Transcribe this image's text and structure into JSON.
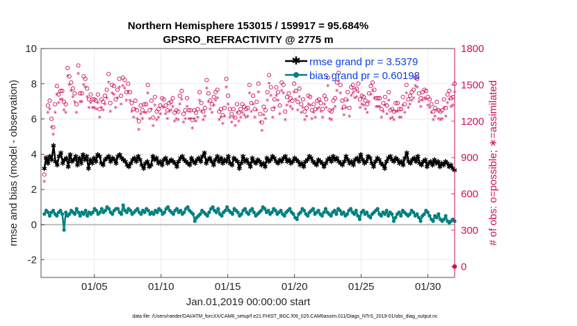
{
  "chart_data": {
    "type": "line",
    "title_line1": "Northern Hemisphere 153015 / 159917 = 95.684%",
    "title_line2": "GPSRO_REFRACTIVITY @ 2775 m",
    "xlabel": "Jan.01,2019 00:00:00 start",
    "ylabel": "rmse and bias (model - observation)",
    "ylabel_right": "# of obs: o=possible; ∗=assimilated",
    "footer": "data file: /Users/raeder/DAI/ATM_forcXX/CAM6_setup/f.e21.FHIST_BGC.f09_025.CAM6assim.011/Diags_NTrS_2019-01/obs_diag_output.nc",
    "xlim": [
      1,
      32
    ],
    "ylim": [
      -3,
      10
    ],
    "ylim_right": [
      -90,
      1800
    ],
    "x_tick_values": [
      5,
      10,
      15,
      20,
      25,
      30
    ],
    "x_tick_labels": [
      "01/05",
      "01/10",
      "01/15",
      "01/20",
      "01/25",
      "01/30"
    ],
    "y_tick_values": [
      -2,
      0,
      2,
      4,
      6,
      8,
      10
    ],
    "y_tick_labels": [
      "-2",
      "0",
      "2",
      "4",
      "6",
      "8",
      "10"
    ],
    "y_right_tick_values": [
      0,
      300,
      600,
      900,
      1200,
      1500,
      1800
    ],
    "y_right_tick_labels": [
      "0",
      "300",
      "600",
      "900",
      "1200",
      "1500",
      "1800"
    ],
    "legend": [
      "rmse grand pr = 3.5379",
      "bias grand pr = 0.60198"
    ],
    "colors": {
      "rmse": "#000000",
      "bias": "#008080",
      "obs": "#cc0f5a",
      "zero": "#bfbfbf"
    },
    "series": [
      {
        "name": "rmse",
        "values": [
          3.2,
          3.8,
          3.5,
          3.9,
          3.7,
          4.5,
          3.6,
          3.4,
          3.9,
          4.1,
          3.5,
          3.7,
          3.8,
          3.3,
          4.0,
          3.6,
          3.7,
          3.9,
          3.4,
          3.8,
          3.5,
          4.0,
          3.7,
          3.9,
          3.2,
          3.7,
          3.5,
          3.8,
          3.6,
          4.0,
          3.9,
          3.5,
          3.4,
          3.7,
          3.8,
          3.9,
          3.6,
          3.8,
          3.7,
          3.5,
          3.9,
          4.0,
          3.8,
          3.7,
          3.6,
          3.4,
          3.3,
          3.5,
          3.7,
          3.8,
          3.6,
          3.9,
          3.7,
          3.4,
          3.2,
          3.5,
          3.6,
          3.3,
          3.4,
          3.9,
          3.7,
          3.8,
          3.5,
          3.6,
          3.4,
          3.7,
          3.8,
          3.5,
          3.6,
          3.7,
          3.6,
          3.5,
          3.3,
          3.6,
          3.8,
          3.9,
          3.7,
          3.6,
          3.5,
          3.4,
          3.8,
          3.6,
          3.5,
          3.7,
          3.8,
          3.6,
          3.9,
          4.1,
          3.5,
          3.7,
          3.8,
          3.6,
          3.4,
          3.7,
          3.9,
          3.6,
          3.8,
          3.5,
          3.7,
          3.6,
          3.9,
          3.5,
          3.4,
          3.8,
          3.7,
          3.6,
          3.2,
          3.5,
          3.9,
          3.6,
          3.7,
          3.5,
          3.3,
          3.8,
          3.6,
          3.5,
          3.7,
          3.6,
          3.4,
          3.5,
          3.3,
          3.8,
          3.6,
          3.7,
          3.9,
          3.8,
          3.6,
          3.5,
          3.7,
          3.6,
          3.8,
          3.9,
          3.6,
          3.7,
          3.5,
          3.6,
          3.8,
          3.7,
          3.6,
          3.4,
          3.5,
          3.3,
          3.6,
          3.7,
          3.9,
          3.8,
          3.6,
          3.5,
          3.4,
          3.7,
          3.6,
          3.5,
          3.3,
          3.5,
          3.7,
          3.8,
          3.6,
          3.9,
          3.7,
          3.8,
          3.6,
          3.5,
          3.4,
          3.6,
          3.9,
          3.7,
          3.5,
          3.6,
          3.4,
          3.7,
          3.8,
          3.6,
          4.0,
          3.7,
          3.5,
          3.6,
          3.9,
          3.8,
          3.5,
          3.3,
          3.6,
          3.8,
          3.7,
          3.5,
          3.4,
          3.2,
          3.6,
          3.8,
          3.9,
          3.7,
          3.6,
          3.8,
          3.7,
          3.5,
          3.6,
          3.4,
          3.8,
          4.1,
          3.6,
          3.5,
          3.7,
          3.8,
          3.6,
          3.9,
          3.5,
          3.4,
          3.6,
          3.7,
          3.3,
          3.5,
          3.6,
          3.4,
          3.7,
          3.5,
          3.6,
          3.3,
          3.5,
          3.4,
          3.6,
          3.5,
          3.3,
          3.4,
          3.2,
          3.1
        ]
      },
      {
        "name": "bias",
        "values": [
          0.6,
          0.8,
          0.7,
          0.5,
          0.7,
          0.8,
          0.6,
          0.5,
          0.7,
          0.8,
          0.6,
          -0.3,
          0.7,
          0.5,
          0.6,
          0.8,
          0.7,
          0.6,
          0.9,
          0.7,
          0.5,
          0.7,
          0.6,
          0.8,
          0.5,
          0.7,
          0.6,
          0.7,
          0.9,
          0.8,
          0.6,
          0.7,
          0.9,
          0.7,
          0.8,
          1.0,
          0.9,
          0.7,
          0.6,
          0.8,
          0.9,
          0.9,
          0.7,
          0.6,
          1.1,
          0.8,
          0.7,
          0.9,
          0.8,
          0.6,
          0.7,
          0.8,
          0.9,
          0.7,
          0.6,
          0.8,
          0.7,
          0.9,
          0.8,
          0.6,
          0.7,
          0.6,
          0.8,
          0.7,
          0.9,
          0.8,
          0.6,
          0.7,
          0.9,
          1.0,
          0.8,
          0.7,
          0.6,
          0.8,
          0.9,
          0.7,
          0.8,
          0.6,
          0.7,
          0.9,
          1.0,
          0.8,
          0.7,
          0.6,
          0.2,
          0.4,
          0.5,
          0.6,
          0.8,
          0.7,
          0.6,
          0.5,
          0.7,
          0.9,
          1.0,
          0.8,
          0.7,
          0.9,
          0.6,
          0.5,
          0.7,
          0.8,
          1.0,
          0.8,
          0.7,
          0.6,
          0.9,
          0.8,
          0.7,
          0.5,
          0.6,
          0.8,
          0.9,
          0.7,
          0.6,
          0.8,
          0.9,
          0.7,
          0.5,
          0.6,
          0.7,
          0.8,
          1.0,
          0.9,
          0.7,
          0.8,
          0.6,
          0.7,
          0.9,
          0.8,
          0.6,
          0.7,
          0.8,
          0.6,
          0.5,
          0.7,
          0.8,
          0.9,
          0.7,
          0.6,
          0.4,
          0.3,
          0.6,
          0.7,
          0.9,
          0.8,
          0.6,
          0.5,
          0.7,
          0.8,
          0.9,
          0.6,
          0.7,
          0.8,
          0.6,
          0.5,
          0.7,
          0.9,
          0.7,
          0.6,
          0.5,
          0.7,
          0.8,
          0.6,
          0.9,
          0.8,
          0.6,
          0.7,
          0.5,
          0.6,
          0.8,
          0.9,
          0.7,
          0.6,
          0.8,
          0.5,
          0.3,
          0.7,
          0.8,
          0.6,
          0.7,
          0.5,
          0.4,
          0.6,
          0.7,
          0.8,
          0.9,
          0.6,
          0.5,
          0.7,
          0.6,
          0.8,
          0.5,
          0.7,
          0.6,
          0.2,
          0.4,
          0.6,
          0.7,
          0.5,
          0.8,
          0.7,
          0.6,
          0.5,
          0.6,
          0.8,
          0.7,
          0.5,
          0.6,
          0.4,
          0.2,
          0.5,
          0.6,
          0.8,
          0.7,
          0.5,
          0.3,
          0.2,
          0.5,
          0.4,
          0.6,
          0.3,
          0.2,
          0.3,
          0.5,
          0.2,
          0.1,
          0.2,
          0.3,
          0.2
        ]
      },
      {
        "name": "obs_possible",
        "values": [
          760,
          900,
          1330,
          1370,
          1220,
          1150,
          1340,
          1490,
          1420,
          1450,
          1450,
          1360,
          1340,
          1640,
          1570,
          1520,
          1470,
          1430,
          1340,
          1660,
          1430,
          1430,
          1570,
          1550,
          1470,
          1380,
          1420,
          1380,
          1380,
          1370,
          1420,
          1300,
          1380,
          1360,
          1410,
          1460,
          1590,
          1350,
          1500,
          1490,
          1380,
          1460,
          1550,
          1410,
          1560,
          1540,
          1440,
          1510,
          1440,
          1350,
          1300,
          1370,
          1290,
          1200,
          1330,
          1290,
          1340,
          1340,
          1500,
          1290,
          1370,
          1230,
          1400,
          1280,
          1300,
          1330,
          1390,
          1380,
          1330,
          1290,
          1350,
          1360,
          1390,
          1270,
          1290,
          1280,
          1410,
          1450,
          1260,
          1290,
          1390,
          1290,
          1290,
          1210,
          1290,
          1270,
          1300,
          1440,
          1350,
          1280,
          1310,
          1540,
          1430,
          1370,
          1340,
          1400,
          1440,
          1460,
          1280,
          1300,
          1250,
          1310,
          1550,
          1410,
          1300,
          1260,
          1300,
          1230,
          1340,
          1270,
          1300,
          1340,
          1320,
          1300,
          1310,
          1500,
          1350,
          1410,
          1300,
          1360,
          1510,
          1260,
          1190,
          1320,
          1290,
          1440,
          1580,
          1480,
          1300,
          1380,
          1480,
          1440,
          1330,
          1520,
          1500,
          1280,
          1400,
          1430,
          1390,
          1370,
          1510,
          1450,
          1360,
          1470,
          1340,
          1380,
          1280,
          1310,
          1410,
          1400,
          1290,
          1340,
          1300,
          1370,
          1380,
          1350,
          1300,
          1410,
          1380,
          1560,
          1290,
          1280,
          1370,
          1390,
          1520,
          1600,
          1500,
          1370,
          1320,
          1380,
          1440,
          1310,
          1480,
          1500,
          1460,
          1470,
          1510,
          1380,
          1410,
          1400,
          1370,
          1340,
          1430,
          1490,
          1520,
          1460,
          1390,
          1390,
          1390,
          1300,
          1350,
          1400,
          1330,
          1440,
          1290,
          1300,
          1280,
          1350,
          1350,
          1300,
          1300,
          1400,
          1340,
          1500,
          1380,
          1410,
          1440,
          1460,
          1560,
          1550,
          1430,
          1390,
          1440,
          1460,
          1450,
          1400,
          1380,
          1340,
          1280,
          1310,
          1360,
          1290,
          1280,
          1290,
          1380,
          1310,
          1420,
          1450,
          1390,
          1400,
          1510
        ]
      },
      {
        "name": "obs_assimilated",
        "values": [
          700,
          880,
          1270,
          1300,
          1150,
          1090,
          1270,
          1420,
          1350,
          1380,
          1380,
          1290,
          1270,
          1570,
          1500,
          1450,
          1400,
          1360,
          1270,
          1590,
          1360,
          1360,
          1500,
          1480,
          1400,
          1310,
          1350,
          1310,
          1310,
          1300,
          1350,
          1230,
          1310,
          1290,
          1340,
          1390,
          1520,
          1280,
          1430,
          1420,
          1310,
          1390,
          1480,
          1340,
          1490,
          1470,
          1370,
          1440,
          1370,
          1280,
          1230,
          1300,
          1220,
          1130,
          1260,
          1220,
          1270,
          1270,
          1430,
          1220,
          1300,
          1160,
          1330,
          1210,
          1230,
          1260,
          1320,
          1310,
          1260,
          1220,
          1280,
          1290,
          1320,
          1200,
          1220,
          1210,
          1340,
          1380,
          1190,
          1220,
          1320,
          1220,
          1220,
          1140,
          1220,
          1200,
          1230,
          1370,
          1280,
          1210,
          1240,
          1470,
          1360,
          1300,
          1270,
          1330,
          1370,
          1390,
          1210,
          1230,
          1180,
          1240,
          1480,
          1340,
          1230,
          1190,
          1230,
          1160,
          1270,
          1200,
          1230,
          1270,
          1250,
          1230,
          1240,
          1430,
          1280,
          1340,
          1230,
          1290,
          1440,
          1190,
          1120,
          1250,
          1220,
          1370,
          1510,
          1410,
          1230,
          1310,
          1410,
          1370,
          1260,
          1450,
          1430,
          1210,
          1330,
          1360,
          1320,
          1300,
          1440,
          1380,
          1290,
          1400,
          1270,
          1310,
          1210,
          1240,
          1340,
          1330,
          1220,
          1270,
          1230,
          1300,
          1310,
          1280,
          1230,
          1340,
          1310,
          1490,
          1220,
          1210,
          1300,
          1320,
          1450,
          1530,
          1430,
          1300,
          1250,
          1310,
          1370,
          1240,
          1410,
          1430,
          1390,
          1400,
          1440,
          1310,
          1340,
          1330,
          1300,
          1270,
          1360,
          1420,
          1450,
          1390,
          1320,
          1320,
          1320,
          1230,
          1280,
          1330,
          1260,
          1370,
          1220,
          1230,
          1210,
          1280,
          1280,
          1230,
          1230,
          1330,
          1270,
          1430,
          1310,
          1340,
          1370,
          1390,
          1490,
          1480,
          1360,
          1320,
          1370,
          1390,
          1380,
          1330,
          1310,
          1270,
          1210,
          1240,
          1290,
          1220,
          1210,
          1220,
          1310,
          1240,
          1350,
          1380,
          1320,
          1330,
          1440
        ]
      }
    ],
    "last_possible_value": 0
  }
}
